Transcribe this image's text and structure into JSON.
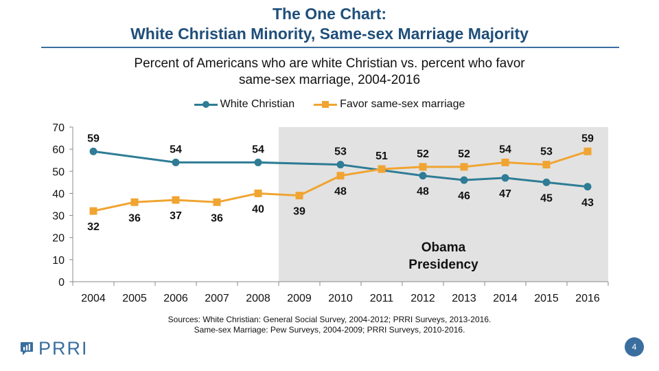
{
  "header": {
    "title_line1": "The One Chart:",
    "title_line2": "White Christian Minority, Same-sex Marriage Majority"
  },
  "chart_data": {
    "type": "line",
    "subtitle_line1": "Percent of Americans who are white Christian vs. percent who favor",
    "subtitle_line2": "same-sex marriage, 2004-2016",
    "x": [
      "2004",
      "2005",
      "2006",
      "2007",
      "2008",
      "2009",
      "2010",
      "2011",
      "2012",
      "2013",
      "2014",
      "2015",
      "2016"
    ],
    "ylim": [
      0,
      70
    ],
    "yticks": [
      0,
      10,
      20,
      30,
      40,
      50,
      60,
      70
    ],
    "series": [
      {
        "name": "White Christian",
        "color": "#2e7c95",
        "marker": "circle",
        "values": [
          59,
          null,
          54,
          null,
          54,
          null,
          53,
          null,
          48,
          46,
          47,
          45,
          43
        ],
        "labels": [
          "59",
          null,
          "54",
          null,
          "54",
          null,
          "53",
          null,
          "48",
          "46",
          "47",
          "45",
          "43"
        ]
      },
      {
        "name": "Favor same-sex marriage",
        "color": "#f0a431",
        "marker": "square",
        "values": [
          32,
          36,
          37,
          36,
          40,
          39,
          48,
          51,
          52,
          52,
          54,
          53,
          59
        ],
        "labels": [
          "32",
          "36",
          "37",
          "36",
          "40",
          "39",
          "48",
          "51",
          "52",
          "52",
          "54",
          "53",
          "59"
        ]
      }
    ],
    "shaded_region": {
      "from": "2009",
      "to": "2016",
      "label_line1": "Obama",
      "label_line2": "Presidency",
      "color": "#e2e2e2"
    },
    "grid": false,
    "legend_position": "top"
  },
  "footer": {
    "sources_line1": "Sources: White Christian: General Social Survey, 2004-2012; PRRI Surveys, 2013-2016.",
    "sources_line2": "Same-sex Marriage: Pew Surveys, 2004-2009; PRRI Surveys, 2010-2016.",
    "logo_text": "PRRI",
    "page_number": "4",
    "accent_color": "#3a6e9e"
  }
}
